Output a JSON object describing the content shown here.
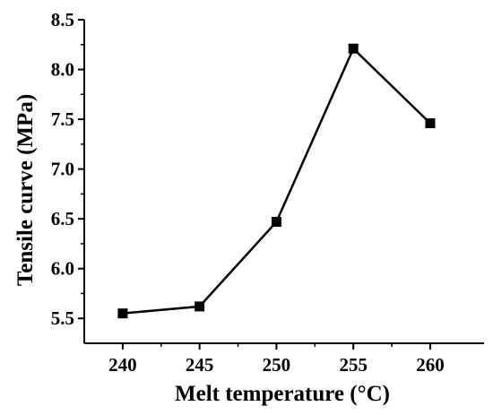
{
  "chart_data": {
    "type": "line",
    "xlabel": "Melt temperature (°C)",
    "ylabel": "Tensile curve (MPa)",
    "xlim": [
      237.5,
      263.5
    ],
    "ylim": [
      5.25,
      8.5
    ],
    "xticks": [
      240,
      245,
      250,
      255,
      260
    ],
    "yticks": [
      5.5,
      6.0,
      6.5,
      7.0,
      7.5,
      8.0,
      8.5
    ],
    "xtick_labels": [
      "240",
      "245",
      "250",
      "255",
      "260"
    ],
    "ytick_labels": [
      "5.5",
      "6.0",
      "6.5",
      "7.0",
      "7.5",
      "8.0",
      "8.5"
    ],
    "grid": false,
    "legend": "none",
    "series": [
      {
        "marker": "square",
        "color": "#000000",
        "x": [
          240,
          245,
          250,
          255,
          260
        ],
        "y": [
          5.55,
          5.62,
          6.47,
          8.21,
          7.46
        ]
      }
    ]
  }
}
